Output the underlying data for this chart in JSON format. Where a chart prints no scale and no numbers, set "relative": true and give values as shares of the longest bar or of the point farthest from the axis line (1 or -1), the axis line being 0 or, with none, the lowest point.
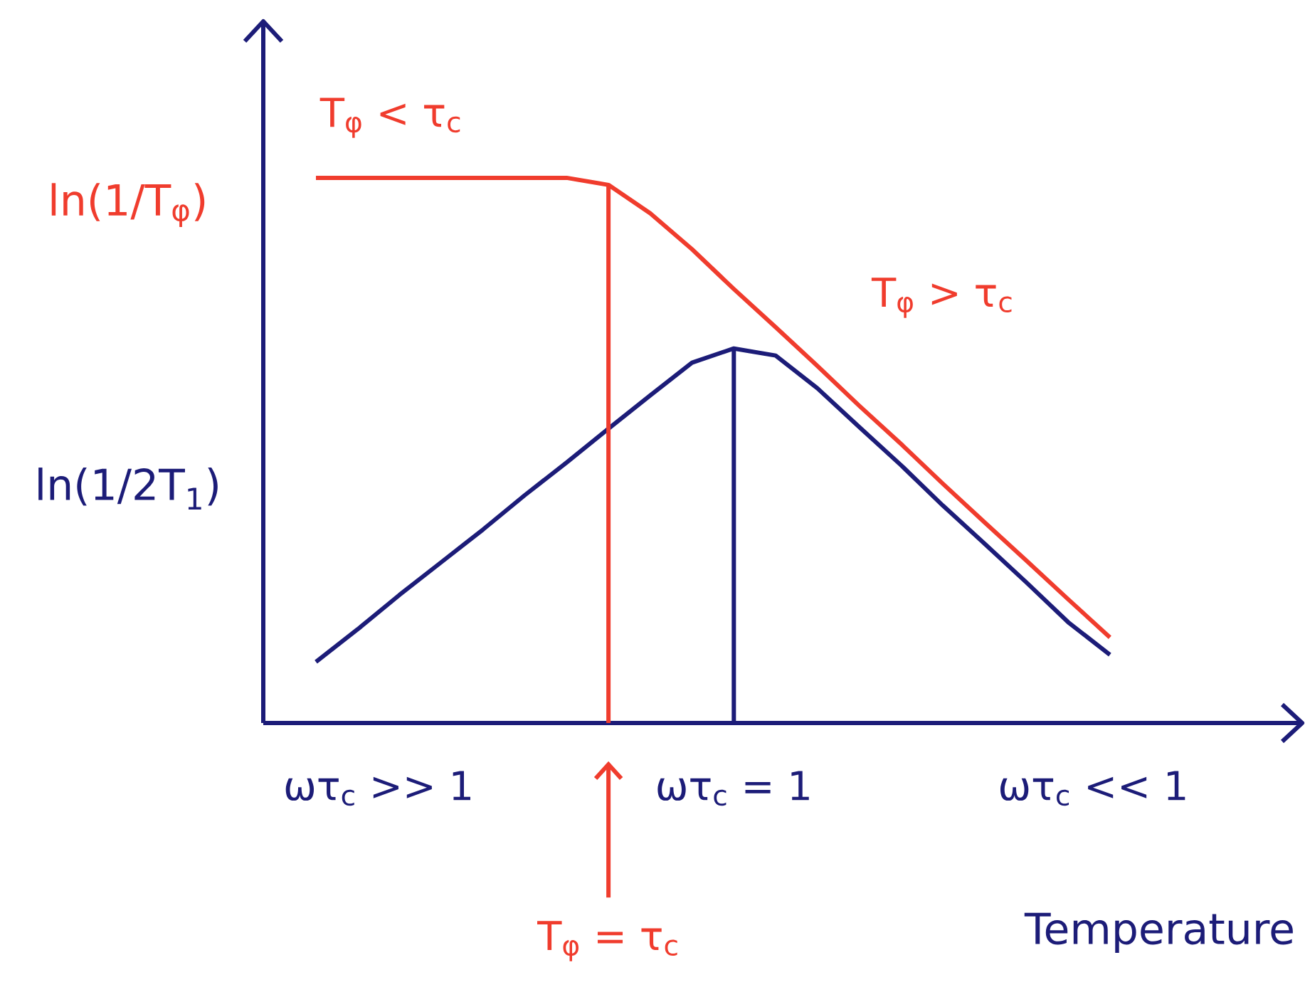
{
  "chart_data": {
    "type": "line",
    "relative": true,
    "xlabel": "Temperature",
    "categories": [
      null,
      null,
      null,
      null,
      null,
      null,
      null,
      null,
      null,
      null,
      null,
      null,
      null,
      null,
      null,
      null,
      null,
      null,
      null,
      null
    ],
    "series": [
      {
        "name": "ln(1/T$_{φ}$)",
        "color": "#f03c2d",
        "values": [
          1.0,
          1.0,
          1.0,
          1.0,
          1.0,
          1.0,
          1.0,
          0.987,
          0.935,
          0.869,
          0.796,
          0.726,
          0.655,
          0.582,
          0.512,
          0.439,
          0.368,
          0.298,
          0.227,
          0.157
        ]
      },
      {
        "name": "ln(1/2T$_{1}$)",
        "color": "#1c1c78",
        "values": [
          0.112,
          0.172,
          0.235,
          0.295,
          0.355,
          0.418,
          0.478,
          0.54,
          0.601,
          0.661,
          0.687,
          0.674,
          0.614,
          0.543,
          0.473,
          0.399,
          0.329,
          0.258,
          0.185,
          0.125
        ]
      }
    ],
    "annotations": [
      "T$_{φ}$ < τ$_{c}$",
      "T$_{φ}$ > τ$_{c}$",
      "ωτ$_{c}$ >> 1",
      "ωτ$_{c}$ << 1",
      "T$_{φ}$ = τ$_{c}$",
      "ωτ$_{c}$ = 1"
    ]
  }
}
